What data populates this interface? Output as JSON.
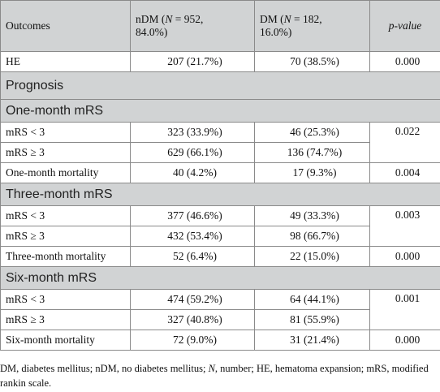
{
  "header": {
    "col1": "Outcomes",
    "col2_pre": "nDM (",
    "col2_n": "N",
    "col2_post": " = 952,",
    "col2_line2": "84.0%)",
    "col3_pre": "DM (",
    "col3_n": "N",
    "col3_post": " = 182,",
    "col3_line2": "16.0%)",
    "col4": "p-value"
  },
  "he": {
    "label": "HE",
    "ndm": "207 (21.7%)",
    "dm": "70 (38.5%)",
    "p": "0.000"
  },
  "prognosis": "Prognosis",
  "one_month": {
    "heading": "One-month mRS",
    "lt3": {
      "label": "mRS < 3",
      "ndm": "323 (33.9%)",
      "dm": "46 (25.3%)"
    },
    "ge3": {
      "label": "mRS ≥ 3",
      "ndm": "629 (66.1%)",
      "dm": "136 (74.7%)"
    },
    "p": "0.022",
    "mortality": {
      "label": "One-month mortality",
      "ndm": "40 (4.2%)",
      "dm": "17 (9.3%)",
      "p": "0.004"
    }
  },
  "three_month": {
    "heading": "Three-month mRS",
    "lt3": {
      "label": "mRS < 3",
      "ndm": "377 (46.6%)",
      "dm": "49 (33.3%)"
    },
    "ge3": {
      "label": "mRS ≥ 3",
      "ndm": "432 (53.4%)",
      "dm": "98 (66.7%)"
    },
    "p": "0.003",
    "mortality": {
      "label": "Three-month mortality",
      "ndm": "52 (6.4%)",
      "dm": "22 (15.0%)",
      "p": "0.000"
    }
  },
  "six_month": {
    "heading": "Six-month mRS",
    "lt3": {
      "label": "mRS < 3",
      "ndm": "474 (59.2%)",
      "dm": "64 (44.1%)"
    },
    "ge3": {
      "label": "mRS ≥ 3",
      "ndm": "327 (40.8%)",
      "dm": "81 (55.9%)"
    },
    "p": "0.001",
    "mortality": {
      "label": "Six-month mortality",
      "ndm": "72 (9.0%)",
      "dm": "31 (21.4%)",
      "p": "0.000"
    }
  },
  "footnote": {
    "part1": "DM, diabetes mellitus; nDM, no diabetes mellitus; ",
    "n": "N",
    "part2": ", number; HE, hematoma expansion; mRS, modified rankin scale."
  }
}
